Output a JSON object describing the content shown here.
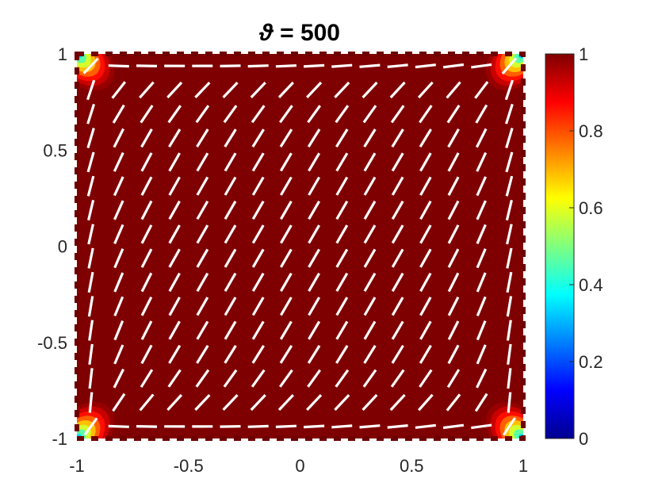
{
  "chart_data": {
    "type": "heatmap",
    "title_symbol": "ϑ",
    "title_rest": " = 500",
    "x": {
      "lim": [
        -1,
        1
      ],
      "ticks": [
        -1,
        -0.5,
        0,
        0.5,
        1
      ],
      "tick_labels": [
        "-1",
        "-0.5",
        "0",
        "0.5",
        "1"
      ]
    },
    "y": {
      "lim": [
        -1,
        1
      ],
      "ticks": [
        -1,
        -0.5,
        0,
        0.5,
        1
      ],
      "tick_labels": [
        "-1",
        "-0.5",
        "0",
        "0.5",
        "1"
      ]
    },
    "colorbar": {
      "lim": [
        0,
        1
      ],
      "ticks": [
        0,
        0.2,
        0.4,
        0.6,
        0.8,
        1
      ],
      "tick_labels": [
        "0",
        "0.2",
        "0.4",
        "0.6",
        "0.8",
        "1"
      ],
      "colormap": "jet"
    },
    "field": {
      "background_value": 1.0,
      "corner_min_value": 0.2,
      "corner_core_radius": 0.07
    },
    "director_field": {
      "grid_n": 16,
      "color": "#ffffff",
      "style": "line segments"
    }
  }
}
